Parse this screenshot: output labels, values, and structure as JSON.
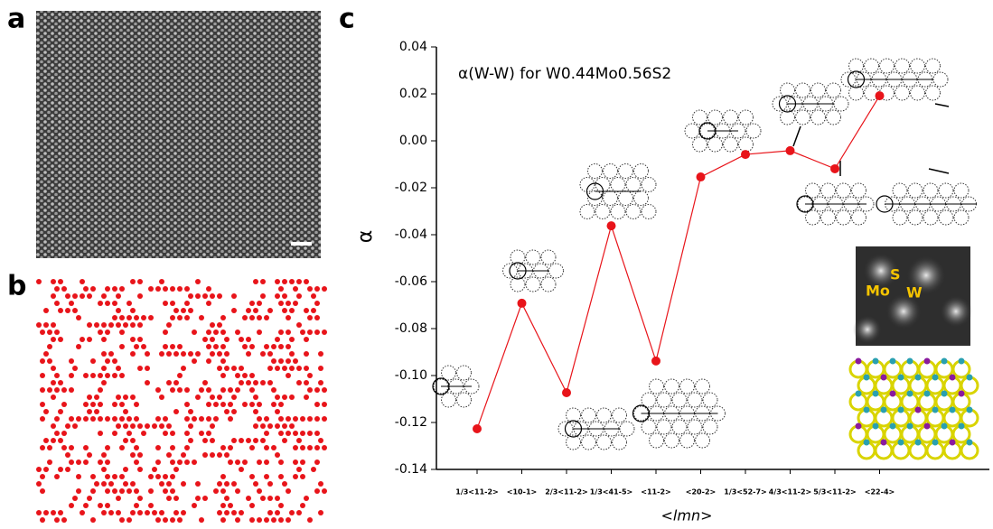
{
  "figure": {
    "panel_labels": [
      "a",
      "b",
      "c"
    ],
    "inset_labels": [
      "Mo",
      "S",
      "W"
    ]
  },
  "chart_data": {
    "type": "line",
    "title": "α(W-W) for W0.44Mo0.56S2",
    "x_label": "<lmn>",
    "y_label": "α",
    "categories": [
      "1/3<11-2>",
      "<10-1>",
      "2/3<11-2>",
      "1/3<41-5>",
      "<11-2>",
      "<20-2>",
      "1/3<52-7>",
      "4/3<11-2>",
      "5/3<11-2>",
      "<22-4>"
    ],
    "values": [
      -0.1227,
      -0.0692,
      -0.1073,
      -0.0362,
      -0.0938,
      -0.0154,
      -0.0058,
      -0.0042,
      -0.0119,
      0.0192
    ],
    "color": "#e8141a",
    "line_color": "#e8141a",
    "ylim": [
      -0.14,
      0.04
    ],
    "yticks": [
      -0.14,
      -0.12,
      {
        "value": -0.1,
        "label": "-0.10"
      },
      -0.08,
      -0.06,
      -0.04,
      -0.02,
      {
        "value": 0,
        "label": "0.00"
      },
      0.02,
      0.04
    ]
  }
}
